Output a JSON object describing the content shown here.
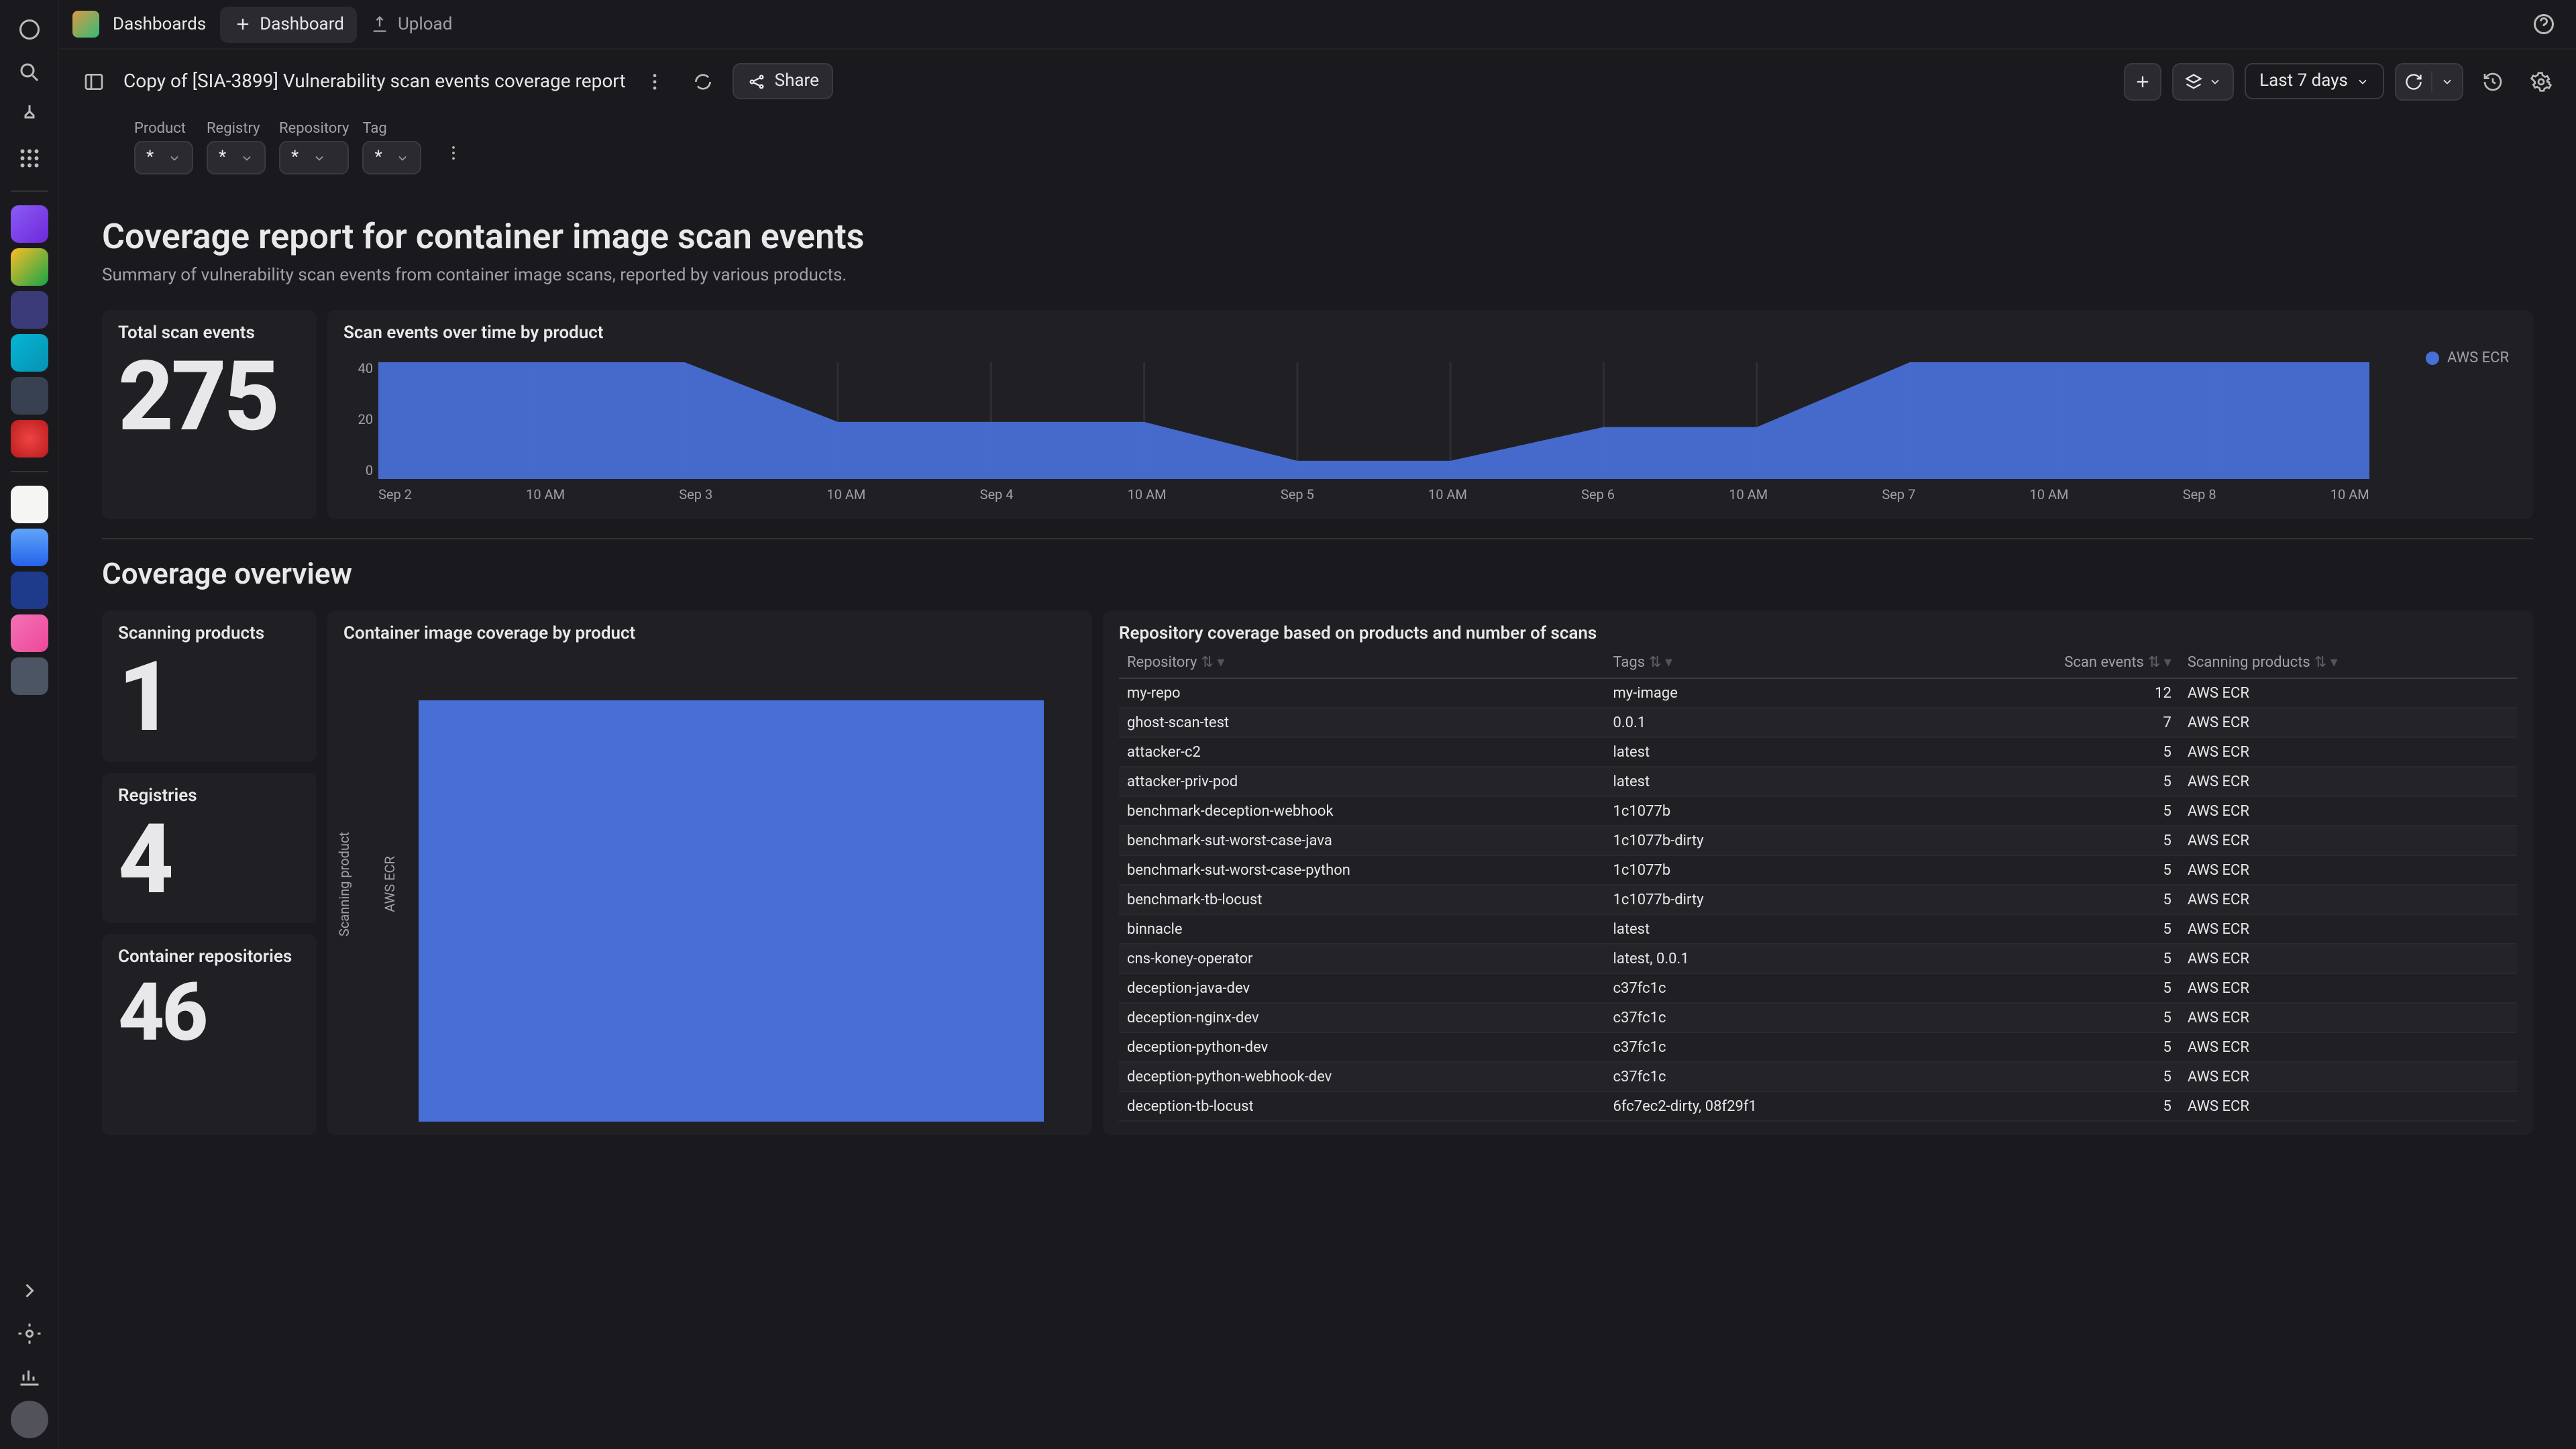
{
  "colors": {
    "bg0": "#1a1a1e",
    "bg1": "#202024",
    "bg2": "#2a2a30",
    "border": "#3a3a40",
    "text": "#e8e8ea",
    "text_dim": "#a0a0a8",
    "chart_blue": "#486fd6"
  },
  "topbar": {
    "crumb": "Dashboards",
    "new_dashboard_btn": "Dashboard",
    "upload_btn": "Upload"
  },
  "subbar": {
    "title": "Copy of [SIA-3899] Vulnerability scan events coverage report",
    "share_btn": "Share",
    "time_range": "Last 7 days"
  },
  "filters": [
    {
      "label": "Product",
      "value": "*"
    },
    {
      "label": "Registry",
      "value": "*"
    },
    {
      "label": "Repository",
      "value": "*"
    },
    {
      "label": "Tag",
      "value": "*"
    }
  ],
  "page": {
    "h1": "Coverage report for container image scan events",
    "sub": "Summary of vulnerability scan events from container image scans, reported by various products.",
    "h2": "Coverage overview"
  },
  "cards": {
    "total_scan_events": {
      "title": "Total scan events",
      "value": "275"
    },
    "scan_events_chart": {
      "title": "Scan events over time by product",
      "legend": "AWS ECR",
      "type": "area",
      "yticks": [
        "40",
        "20",
        "0"
      ],
      "ylim": [
        0,
        45
      ],
      "xlabels": [
        "Sep 2",
        "10 AM",
        "Sep 3",
        "10 AM",
        "Sep 4",
        "10 AM",
        "Sep 5",
        "10 AM",
        "Sep 6",
        "10 AM",
        "Sep 7",
        "10 AM",
        "Sep 8",
        "10 AM"
      ],
      "series": [
        45,
        45,
        45,
        22,
        22,
        22,
        7,
        7,
        20,
        20,
        45,
        45,
        45,
        45
      ],
      "color": "#486fd6",
      "grid_color": "#2e2e34"
    },
    "scanning_products": {
      "title": "Scanning products",
      "value": "1"
    },
    "registries": {
      "title": "Registries",
      "value": "4"
    },
    "container_repos": {
      "title": "Container repositories",
      "value": "46"
    },
    "coverage_by_product": {
      "title": "Container image coverage by product",
      "ylabel": "Scanning product",
      "xlabel": "AWS ECR",
      "value": 46,
      "color": "#486fd6"
    },
    "repo_table": {
      "title": "Repository coverage based on products and number of scans",
      "columns": [
        "Repository",
        "Tags",
        "Scan events",
        "Scanning products"
      ],
      "rows": [
        [
          "my-repo",
          "my-image",
          "12",
          "AWS ECR"
        ],
        [
          "ghost-scan-test",
          "0.0.1",
          "7",
          "AWS ECR"
        ],
        [
          "attacker-c2",
          "latest",
          "5",
          "AWS ECR"
        ],
        [
          "attacker-priv-pod",
          "latest",
          "5",
          "AWS ECR"
        ],
        [
          "benchmark-deception-webhook",
          "1c1077b",
          "5",
          "AWS ECR"
        ],
        [
          "benchmark-sut-worst-case-java",
          "1c1077b-dirty",
          "5",
          "AWS ECR"
        ],
        [
          "benchmark-sut-worst-case-python",
          "1c1077b",
          "5",
          "AWS ECR"
        ],
        [
          "benchmark-tb-locust",
          "1c1077b-dirty",
          "5",
          "AWS ECR"
        ],
        [
          "binnacle",
          "latest",
          "5",
          "AWS ECR"
        ],
        [
          "cns-koney-operator",
          "latest, 0.0.1",
          "5",
          "AWS ECR"
        ],
        [
          "deception-java-dev",
          "c37fc1c",
          "5",
          "AWS ECR"
        ],
        [
          "deception-nginx-dev",
          "c37fc1c",
          "5",
          "AWS ECR"
        ],
        [
          "deception-python-dev",
          "c37fc1c",
          "5",
          "AWS ECR"
        ],
        [
          "deception-python-webhook-dev",
          "c37fc1c",
          "5",
          "AWS ECR"
        ],
        [
          "deception-tb-locust",
          "6fc7ec2-dirty, 08f29f1",
          "5",
          "AWS ECR"
        ]
      ]
    }
  }
}
